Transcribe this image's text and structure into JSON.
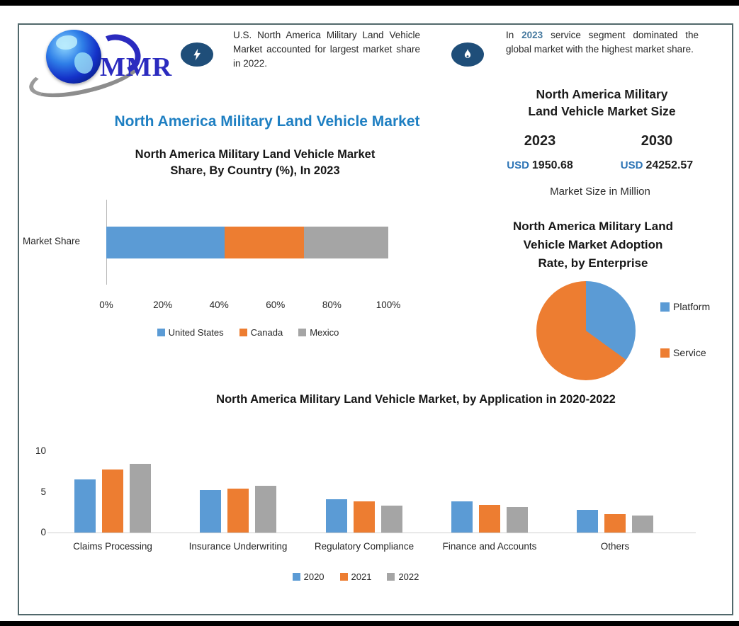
{
  "colors": {
    "series_blue": "#5B9BD5",
    "series_orange": "#ED7D31",
    "series_gray": "#A5A5A5",
    "title_blue": "#1e7fc2",
    "usd_blue": "#2e75b6",
    "icon_navy": "#1f4e79",
    "frame_border": "#51686b"
  },
  "header": {
    "logo_text": "MMR",
    "callouts": [
      {
        "icon": "lightning-icon",
        "text": "U.S. North America Military Land Vehicle Market accounted for largest market share in 2022."
      },
      {
        "icon": "flame-icon",
        "prefix": "In",
        "year": "2023",
        "text": "service segment dominated the global market with the highest market share."
      }
    ]
  },
  "main_title": "North America Military Land Vehicle Market",
  "market_size_panel": {
    "title_lines": [
      "North America Military",
      "Land Vehicle Market Size"
    ],
    "entries": [
      {
        "year": "2023",
        "currency": "USD",
        "value": "1950.68"
      },
      {
        "year": "2030",
        "currency": "USD",
        "value": "24252.57"
      }
    ],
    "note": "Market Size in Million"
  },
  "chart_data": [
    {
      "type": "bar",
      "subtype": "horizontal_stacked",
      "title_lines": [
        "North America Military Land Vehicle Market",
        "Share, By Country (%), In 2023"
      ],
      "category_label": "Market Share",
      "series": [
        {
          "name": "United States",
          "value": 42,
          "color": "#5B9BD5"
        },
        {
          "name": "Canada",
          "value": 28,
          "color": "#ED7D31"
        },
        {
          "name": "Mexico",
          "value": 30,
          "color": "#A5A5A5"
        }
      ],
      "x_ticks": [
        "0%",
        "20%",
        "40%",
        "60%",
        "80%",
        "100%"
      ],
      "xlim": [
        0,
        100
      ],
      "grid": false,
      "legend_position": "bottom"
    },
    {
      "type": "pie",
      "title_lines": [
        "North America Military Land",
        "Vehicle Market Adoption",
        "Rate, by Enterprise"
      ],
      "slices": [
        {
          "label": "Platform",
          "value": 35,
          "color": "#5B9BD5"
        },
        {
          "label": "Service",
          "value": 65,
          "color": "#ED7D31"
        }
      ],
      "start_angle_deg": 0,
      "direction": "clockwise",
      "legend_position": "right"
    },
    {
      "type": "bar",
      "subtype": "vertical_grouped",
      "title": "North America Military Land Vehicle Market, by Application in 2020-2022",
      "categories": [
        "Claims Processing",
        "Insurance Underwriting",
        "Regulatory Compliance",
        "Finance and Accounts",
        "Others"
      ],
      "series": [
        {
          "name": "2020",
          "color": "#5B9BD5",
          "values": [
            6.5,
            5.2,
            4.1,
            3.8,
            2.8
          ]
        },
        {
          "name": "2021",
          "color": "#ED7D31",
          "values": [
            7.7,
            5.4,
            3.8,
            3.4,
            2.3
          ]
        },
        {
          "name": "2022",
          "color": "#A5A5A5",
          "values": [
            8.4,
            5.7,
            3.3,
            3.1,
            2.1
          ]
        }
      ],
      "y_ticks": [
        10,
        5,
        0
      ],
      "ylim": [
        0,
        10
      ],
      "grid": false,
      "legend_position": "bottom"
    }
  ]
}
